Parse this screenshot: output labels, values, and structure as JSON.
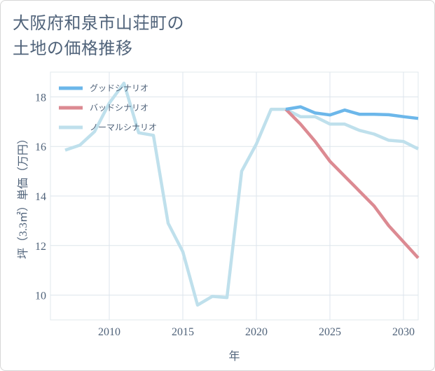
{
  "title_lines": [
    "大阪府和泉市山荘町の",
    "土地の価格推移"
  ],
  "chart_data": {
    "type": "line",
    "xlabel": "年",
    "ylabel": "坪（3.3㎡）単価（万円）",
    "xlim": [
      2006,
      2031
    ],
    "ylim": [
      9,
      19
    ],
    "xticks": [
      2010,
      2015,
      2020,
      2025,
      2030
    ],
    "yticks": [
      10,
      12,
      14,
      16,
      18
    ],
    "grid": true,
    "legend_position": "top-left",
    "series": [
      {
        "name": "グッドシナリオ",
        "color": "#6cb7ea",
        "x": [
          2022,
          2023,
          2024,
          2025,
          2026,
          2027,
          2028,
          2029,
          2030,
          2031
        ],
        "y": [
          17.5,
          17.6,
          17.35,
          17.27,
          17.47,
          17.3,
          17.3,
          17.28,
          17.2,
          17.13
        ]
      },
      {
        "name": "バッドシナリオ",
        "color": "#dc8a92",
        "x": [
          2022,
          2023,
          2024,
          2025,
          2026,
          2027,
          2028,
          2029,
          2030,
          2031
        ],
        "y": [
          17.5,
          16.9,
          16.2,
          15.4,
          14.8,
          14.2,
          13.6,
          12.8,
          12.15,
          11.5
        ]
      },
      {
        "name": "ノーマルシナリオ",
        "color": "#bfe0ec",
        "x": [
          2007,
          2008,
          2009,
          2010,
          2011,
          2012,
          2013,
          2014,
          2015,
          2016,
          2017,
          2018,
          2019,
          2020,
          2021,
          2022,
          2023,
          2024,
          2025,
          2026,
          2027,
          2028,
          2029,
          2030,
          2031
        ],
        "y": [
          15.85,
          16.05,
          16.6,
          17.75,
          18.55,
          16.55,
          16.45,
          12.9,
          11.75,
          9.6,
          9.95,
          9.9,
          15.0,
          16.1,
          17.5,
          17.5,
          17.2,
          17.2,
          16.9,
          16.9,
          16.65,
          16.5,
          16.25,
          16.2,
          15.9
        ]
      }
    ]
  }
}
